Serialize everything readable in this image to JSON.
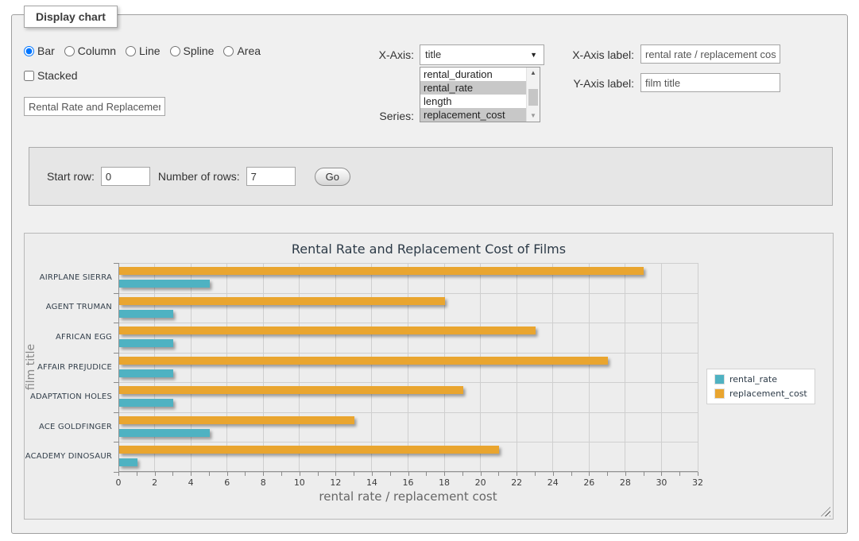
{
  "panel": {
    "legend": "Display chart"
  },
  "chart_type_options": [
    {
      "label": "Bar",
      "checked": true
    },
    {
      "label": "Column",
      "checked": false
    },
    {
      "label": "Line",
      "checked": false
    },
    {
      "label": "Spline",
      "checked": false
    },
    {
      "label": "Area",
      "checked": false
    }
  ],
  "stacked": {
    "label": "Stacked",
    "checked": false
  },
  "title_input": {
    "value": "Rental Rate and Replacement Cost of Films"
  },
  "x_axis": {
    "label": "X-Axis:",
    "value": "title"
  },
  "series_picker": {
    "label": "Series:",
    "options": [
      {
        "label": "rental_duration",
        "selected": false
      },
      {
        "label": "rental_rate",
        "selected": true
      },
      {
        "label": "length",
        "selected": false
      },
      {
        "label": "replacement_cost",
        "selected": true
      }
    ]
  },
  "x_axis_label": {
    "label": "X-Axis label:",
    "value": "rental rate / replacement cost"
  },
  "y_axis_label": {
    "label": "Y-Axis label:",
    "value": "film title"
  },
  "row_controls": {
    "start_row_label": "Start row:",
    "start_row_value": "0",
    "num_rows_label": "Number of rows:",
    "num_rows_value": "7",
    "go_label": "Go"
  },
  "chart_data": {
    "type": "bar",
    "orientation": "horizontal",
    "title": "Rental Rate and Replacement Cost of Films",
    "xlabel": "rental rate / replacement cost",
    "ylabel": "film title",
    "categories": [
      "AIRPLANE SIERRA",
      "AGENT TRUMAN",
      "AFRICAN EGG",
      "AFFAIR PREJUDICE",
      "ADAPTATION HOLES",
      "ACE GOLDFINGER",
      "ACADEMY DINOSAUR"
    ],
    "series": [
      {
        "name": "rental_rate",
        "color": "#4fb2c2",
        "values": [
          4.99,
          2.99,
          2.99,
          2.99,
          2.99,
          4.99,
          0.99
        ]
      },
      {
        "name": "replacement_cost",
        "color": "#e9a52f",
        "values": [
          28.99,
          17.99,
          22.99,
          26.99,
          18.99,
          12.99,
          20.99
        ]
      }
    ],
    "xlim": [
      0,
      32
    ],
    "x_tick_step": 2,
    "x_minor_tick_step": 1,
    "grid": true,
    "legend_position": "right"
  }
}
